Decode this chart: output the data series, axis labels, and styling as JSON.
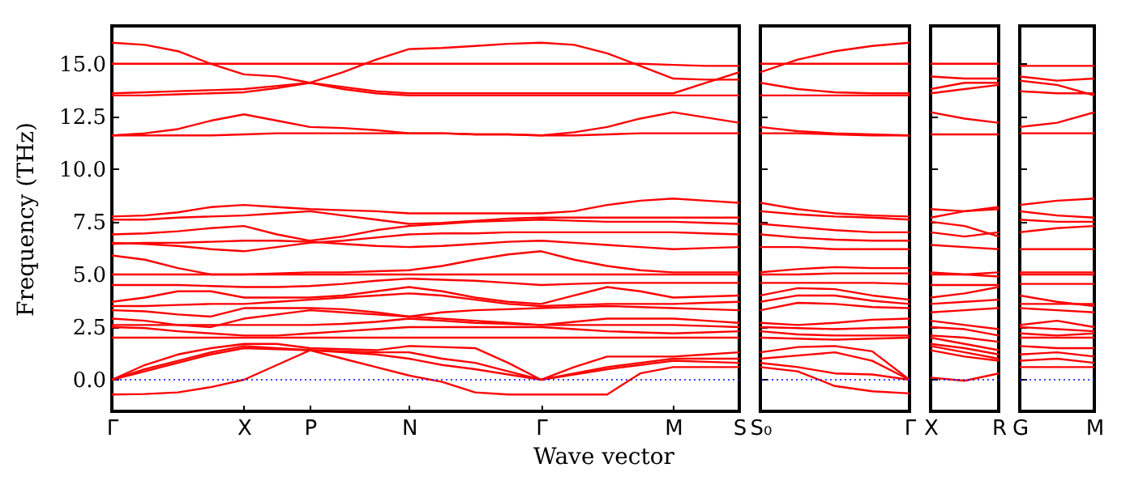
{
  "chart_data": [
    {
      "type": "line",
      "xlabel": "Wave vector",
      "ylabel": "Frequency (THz)",
      "categories": [
        "Γ",
        null,
        null,
        null,
        "X",
        null,
        "P",
        null,
        null,
        "N",
        null,
        null,
        null,
        "Γ",
        null,
        null,
        null,
        "M",
        null,
        "S"
      ],
      "ylim": [
        -1.5,
        16.8
      ],
      "yticks": [
        {
          "value": 0,
          "label": "0.0"
        },
        {
          "value": 2.5,
          "label": "2.5"
        },
        {
          "value": 5,
          "label": "5.0"
        },
        {
          "value": 7.5,
          "label": "7.5"
        },
        {
          "value": 10,
          "label": "10.0"
        },
        {
          "value": 12.5,
          "label": "12.5"
        },
        {
          "value": 15,
          "label": "15.0"
        }
      ],
      "ref_lines": [
        {
          "axis": "y",
          "value": 0,
          "color": "#0000ff",
          "line_style": "dotted"
        }
      ],
      "series": [
        {
          "color": "#ff0000",
          "values": [
            16.0,
            15.9,
            15.6,
            15.0,
            14.5,
            14.4,
            14.1,
            14.6,
            15.2,
            15.7,
            15.75,
            15.85,
            15.95,
            16.0,
            15.9,
            15.5,
            14.9,
            14.3,
            14.25,
            14.25
          ]
        },
        {
          "color": "#ff0000",
          "values": [
            15,
            15,
            15,
            15,
            15,
            15,
            15,
            15,
            15,
            15,
            15,
            15,
            15,
            15,
            15,
            15,
            15,
            14.95,
            14.9,
            14.9
          ]
        },
        {
          "color": "#ff0000",
          "values": [
            13.6,
            13.65,
            13.7,
            13.75,
            13.8,
            13.95,
            14.1,
            13.9,
            13.7,
            13.6,
            13.6,
            13.6,
            13.6,
            13.6,
            13.6,
            13.6,
            13.6,
            13.6,
            14.1,
            14.6
          ]
        },
        {
          "color": "#ff0000",
          "values": [
            13.5,
            13.5,
            13.55,
            13.6,
            13.65,
            13.85,
            14.1,
            13.8,
            13.6,
            13.5,
            13.5,
            13.5,
            13.5,
            13.5,
            13.5,
            13.5,
            13.5,
            13.5,
            13.5,
            13.5
          ]
        },
        {
          "color": "#ff0000",
          "values": [
            11.6,
            11.7,
            11.9,
            12.3,
            12.6,
            12.3,
            12.0,
            11.95,
            11.85,
            11.7,
            11.7,
            11.65,
            11.65,
            11.6,
            11.75,
            12.0,
            12.4,
            12.7,
            12.45,
            12.2
          ]
        },
        {
          "color": "#ff0000",
          "values": [
            11.6,
            11.6,
            11.6,
            11.6,
            11.65,
            11.7,
            11.7,
            11.7,
            11.7,
            11.7,
            11.7,
            11.65,
            11.65,
            11.6,
            11.6,
            11.65,
            11.7,
            11.7,
            11.7,
            11.7
          ]
        },
        {
          "color": "#ff0000",
          "values": [
            7.75,
            7.8,
            7.95,
            8.2,
            8.3,
            8.2,
            8.1,
            8.05,
            8.0,
            7.9,
            7.9,
            7.9,
            7.9,
            7.9,
            8.0,
            8.3,
            8.5,
            8.6,
            8.5,
            8.4
          ]
        },
        {
          "color": "#ff0000",
          "values": [
            7.6,
            7.6,
            7.7,
            7.75,
            7.8,
            7.9,
            8.0,
            7.8,
            7.6,
            7.4,
            7.45,
            7.55,
            7.65,
            7.7,
            7.7,
            7.7,
            7.7,
            7.7,
            7.7,
            7.7
          ]
        },
        {
          "color": "#ff0000",
          "values": [
            6.9,
            6.95,
            7.05,
            7.2,
            7.3,
            6.9,
            6.6,
            6.8,
            7.1,
            7.3,
            7.4,
            7.5,
            7.55,
            7.6,
            7.55,
            7.5,
            7.5,
            7.5,
            7.45,
            7.4
          ]
        },
        {
          "color": "#ff0000",
          "values": [
            6.5,
            6.45,
            6.35,
            6.2,
            6.1,
            6.3,
            6.5,
            6.6,
            6.75,
            6.9,
            6.95,
            6.95,
            7.0,
            7.0,
            7.0,
            7.0,
            7.0,
            7.0,
            6.95,
            6.9
          ]
        },
        {
          "color": "#ff0000",
          "values": [
            6.45,
            6.5,
            6.5,
            6.55,
            6.6,
            6.6,
            6.55,
            6.45,
            6.35,
            6.3,
            6.35,
            6.45,
            6.55,
            6.6,
            6.5,
            6.4,
            6.3,
            6.2,
            6.25,
            6.3
          ]
        },
        {
          "color": "#ff0000",
          "values": [
            5.9,
            5.7,
            5.3,
            5.0,
            5.0,
            5.05,
            5.1,
            5.1,
            5.15,
            5.2,
            5.4,
            5.7,
            5.95,
            6.1,
            5.7,
            5.4,
            5.2,
            5.1,
            5.1,
            5.1
          ]
        },
        {
          "color": "#ff0000",
          "values": [
            5.0,
            5.0,
            5.0,
            5.0,
            5.0,
            5.0,
            5.0,
            5.0,
            5.0,
            5.0,
            5.0,
            5.0,
            5.0,
            5.0,
            5.0,
            5.0,
            5.0,
            5.0,
            5.0,
            5.0
          ]
        },
        {
          "color": "#ff0000",
          "values": [
            4.5,
            4.5,
            4.5,
            4.45,
            4.4,
            4.4,
            4.45,
            4.55,
            4.7,
            4.8,
            4.75,
            4.7,
            4.6,
            4.5,
            4.55,
            4.6,
            4.6,
            4.6,
            4.6,
            4.6
          ]
        },
        {
          "color": "#ff0000",
          "values": [
            3.7,
            3.9,
            4.2,
            4.2,
            3.9,
            3.9,
            3.9,
            4.0,
            4.2,
            4.4,
            4.2,
            3.9,
            3.7,
            3.6,
            4.0,
            4.4,
            4.2,
            3.9,
            3.95,
            4.0
          ]
        },
        {
          "color": "#ff0000",
          "values": [
            3.5,
            3.5,
            3.55,
            3.6,
            3.6,
            3.7,
            3.8,
            3.9,
            4.0,
            4.1,
            4.0,
            3.8,
            3.6,
            3.5,
            3.55,
            3.6,
            3.6,
            3.6,
            3.65,
            3.7
          ]
        },
        {
          "color": "#ff0000",
          "values": [
            3.3,
            3.25,
            3.1,
            3.0,
            3.4,
            3.4,
            3.4,
            3.35,
            3.2,
            3.0,
            3.2,
            3.3,
            3.35,
            3.4,
            3.45,
            3.5,
            3.45,
            3.4,
            3.35,
            3.3
          ]
        },
        {
          "color": "#ff0000",
          "values": [
            2.9,
            2.8,
            2.6,
            2.5,
            2.9,
            3.1,
            3.3,
            3.2,
            3.1,
            3.0,
            2.9,
            2.8,
            2.7,
            2.6,
            2.75,
            2.9,
            2.9,
            2.9,
            2.8,
            2.7
          ]
        },
        {
          "color": "#ff0000",
          "values": [
            2.6,
            2.6,
            2.6,
            2.6,
            2.6,
            2.6,
            2.6,
            2.65,
            2.75,
            2.9,
            2.8,
            2.7,
            2.65,
            2.6,
            2.6,
            2.6,
            2.6,
            2.6,
            2.55,
            2.5
          ]
        },
        {
          "color": "#ff0000",
          "values": [
            2.5,
            2.45,
            2.3,
            2.2,
            2.1,
            2.1,
            2.2,
            2.3,
            2.4,
            2.5,
            2.5,
            2.5,
            2.5,
            2.5,
            2.4,
            2.3,
            2.25,
            2.2,
            2.25,
            2.3
          ]
        },
        {
          "color": "#ff0000",
          "values": [
            2.0,
            2.0,
            2.0,
            2.0,
            2.0,
            2.0,
            2.0,
            2.0,
            2.0,
            2.0,
            2.0,
            2.0,
            2.0,
            2.0,
            2.0,
            2.0,
            2.0,
            2.0,
            2.0,
            2.0
          ]
        },
        {
          "color": "#ff0000",
          "values": [
            0,
            0.7,
            1.2,
            1.5,
            1.7,
            1.7,
            1.5,
            1.45,
            1.4,
            1.6,
            1.55,
            1.5,
            0.8,
            0,
            0.6,
            1.1,
            1.1,
            1.1,
            1.2,
            1.3
          ]
        },
        {
          "color": "#ff0000",
          "values": [
            0,
            0.5,
            0.9,
            1.3,
            1.6,
            1.5,
            1.4,
            1.35,
            1.3,
            1.3,
            1.0,
            0.8,
            0.4,
            0,
            0.3,
            0.6,
            0.8,
            1.0,
            1.0,
            1.0
          ]
        },
        {
          "color": "#ff0000",
          "values": [
            0,
            0.4,
            0.8,
            1.2,
            1.5,
            1.45,
            1.4,
            1.3,
            1.2,
            1.0,
            0.7,
            0.5,
            0.25,
            0,
            0.25,
            0.5,
            0.7,
            0.9,
            0.85,
            0.8
          ]
        },
        {
          "color": "#ff0000",
          "values": [
            -0.7,
            -0.68,
            -0.6,
            -0.35,
            0,
            0.7,
            1.4,
            1.0,
            0.6,
            0.2,
            -0.1,
            -0.6,
            -0.7,
            -0.7,
            -0.7,
            -0.7,
            0.3,
            0.6,
            0.6,
            0.6
          ]
        }
      ]
    },
    {
      "type": "line",
      "categories": [
        "S₀",
        null,
        null,
        null,
        "Γ"
      ],
      "ylim": [
        -1.5,
        16.8
      ],
      "yticks": [
        {
          "value": 0,
          "label": null
        },
        {
          "value": 2.5,
          "label": null
        },
        {
          "value": 5,
          "label": null
        },
        {
          "value": 7.5,
          "label": null
        },
        {
          "value": 10,
          "label": null
        },
        {
          "value": 12.5,
          "label": null
        },
        {
          "value": 15,
          "label": null
        }
      ],
      "tick_labels": "x",
      "ref_lines": [
        {
          "axis": "y",
          "value": 0,
          "color": "#0000ff",
          "line_style": "dotted"
        }
      ],
      "series": [
        {
          "color": "#ff0000",
          "values": [
            14.6,
            15.2,
            15.6,
            15.85,
            16.0
          ]
        },
        {
          "color": "#ff0000",
          "values": [
            15,
            15,
            15,
            15,
            15
          ]
        },
        {
          "color": "#ff0000",
          "values": [
            14.1,
            13.8,
            13.65,
            13.6,
            13.6
          ]
        },
        {
          "color": "#ff0000",
          "values": [
            13.5,
            13.5,
            13.5,
            13.5,
            13.5
          ]
        },
        {
          "color": "#ff0000",
          "values": [
            12.0,
            11.8,
            11.7,
            11.65,
            11.6
          ]
        },
        {
          "color": "#ff0000",
          "values": [
            11.7,
            11.7,
            11.65,
            11.6,
            11.6
          ]
        },
        {
          "color": "#ff0000",
          "values": [
            8.4,
            8.1,
            7.9,
            7.8,
            7.75
          ]
        },
        {
          "color": "#ff0000",
          "values": [
            8.0,
            7.85,
            7.75,
            7.7,
            7.6
          ]
        },
        {
          "color": "#ff0000",
          "values": [
            7.4,
            7.25,
            7.1,
            7.0,
            7.0
          ]
        },
        {
          "color": "#ff0000",
          "values": [
            6.9,
            6.75,
            6.65,
            6.6,
            6.6
          ]
        },
        {
          "color": "#ff0000",
          "values": [
            6.3,
            6.3,
            6.2,
            6.2,
            6.2
          ]
        },
        {
          "color": "#ff0000",
          "values": [
            5.1,
            5.25,
            5.35,
            5.3,
            5.3
          ]
        },
        {
          "color": "#ff0000",
          "values": [
            5.0,
            5.0,
            5.05,
            5.05,
            5.05
          ]
        },
        {
          "color": "#ff0000",
          "values": [
            4.6,
            4.6,
            4.6,
            4.6,
            4.55
          ]
        },
        {
          "color": "#ff0000",
          "values": [
            4.0,
            4.35,
            4.3,
            4.0,
            3.8
          ]
        },
        {
          "color": "#ff0000",
          "values": [
            3.7,
            4.0,
            4.0,
            3.75,
            3.6
          ]
        },
        {
          "color": "#ff0000",
          "values": [
            3.3,
            3.65,
            3.6,
            3.45,
            3.4
          ]
        },
        {
          "color": "#ff0000",
          "values": [
            2.7,
            2.6,
            2.7,
            2.85,
            2.9
          ]
        },
        {
          "color": "#ff0000",
          "values": [
            2.5,
            2.45,
            2.4,
            2.45,
            2.5
          ]
        },
        {
          "color": "#ff0000",
          "values": [
            2.3,
            2.15,
            2.1,
            2.1,
            2.1
          ]
        },
        {
          "color": "#ff0000",
          "values": [
            2.0,
            1.95,
            1.9,
            1.95,
            2.0
          ]
        },
        {
          "color": "#ff0000",
          "values": [
            1.3,
            1.55,
            1.6,
            1.35,
            0
          ]
        },
        {
          "color": "#ff0000",
          "values": [
            1.0,
            1.15,
            1.3,
            0.9,
            0
          ]
        },
        {
          "color": "#ff0000",
          "values": [
            0.8,
            0.6,
            0.3,
            0.25,
            0
          ]
        },
        {
          "color": "#ff0000",
          "values": [
            0.6,
            0.4,
            -0.3,
            -0.55,
            -0.65
          ]
        }
      ]
    },
    {
      "type": "line",
      "categories": [
        "X",
        null,
        "R"
      ],
      "ylim": [
        -1.5,
        16.8
      ],
      "yticks": [
        {
          "value": 0,
          "label": null
        },
        {
          "value": 2.5,
          "label": null
        },
        {
          "value": 5,
          "label": null
        },
        {
          "value": 7.5,
          "label": null
        },
        {
          "value": 10,
          "label": null
        },
        {
          "value": 12.5,
          "label": null
        },
        {
          "value": 15,
          "label": null
        }
      ],
      "tick_labels": "x",
      "ref_lines": [
        {
          "axis": "y",
          "value": 0,
          "color": "#0000ff",
          "line_style": "dotted"
        }
      ],
      "series": [
        {
          "color": "#ff0000",
          "values": [
            14.4,
            14.3,
            14.3
          ]
        },
        {
          "color": "#ff0000",
          "values": [
            15,
            15,
            15
          ]
        },
        {
          "color": "#ff0000",
          "values": [
            13.8,
            14.1,
            14.1
          ]
        },
        {
          "color": "#ff0000",
          "values": [
            13.6,
            13.8,
            14.0
          ]
        },
        {
          "color": "#ff0000",
          "values": [
            12.7,
            12.4,
            12.2
          ]
        },
        {
          "color": "#ff0000",
          "values": [
            11.65,
            11.65,
            11.65
          ]
        },
        {
          "color": "#ff0000",
          "values": [
            8.1,
            8.0,
            8.2
          ]
        },
        {
          "color": "#ff0000",
          "values": [
            7.7,
            8.0,
            8.1
          ]
        },
        {
          "color": "#ff0000",
          "values": [
            7.5,
            7.3,
            6.8
          ]
        },
        {
          "color": "#ff0000",
          "values": [
            7.0,
            6.8,
            7.0
          ]
        },
        {
          "color": "#ff0000",
          "values": [
            6.4,
            6.3,
            6.2
          ]
        },
        {
          "color": "#ff0000",
          "values": [
            5.0,
            5.0,
            5.1
          ]
        },
        {
          "color": "#ff0000",
          "values": [
            5.1,
            5.0,
            4.9
          ]
        },
        {
          "color": "#ff0000",
          "values": [
            4.5,
            4.5,
            4.5
          ]
        },
        {
          "color": "#ff0000",
          "values": [
            3.9,
            4.1,
            4.4
          ]
        },
        {
          "color": "#ff0000",
          "values": [
            3.6,
            3.7,
            3.8
          ]
        },
        {
          "color": "#ff0000",
          "values": [
            3.2,
            3.3,
            3.4
          ]
        },
        {
          "color": "#ff0000",
          "values": [
            2.8,
            2.6,
            2.4
          ]
        },
        {
          "color": "#ff0000",
          "values": [
            2.5,
            2.4,
            2.1
          ]
        },
        {
          "color": "#ff0000",
          "values": [
            2.1,
            2.0,
            1.8
          ]
        },
        {
          "color": "#ff0000",
          "values": [
            2.0,
            1.7,
            1.4
          ]
        },
        {
          "color": "#ff0000",
          "values": [
            1.7,
            1.5,
            1.2
          ]
        },
        {
          "color": "#ff0000",
          "values": [
            1.6,
            1.3,
            1.0
          ]
        },
        {
          "color": "#ff0000",
          "values": [
            1.4,
            1.1,
            0.9
          ]
        },
        {
          "color": "#ff0000",
          "values": [
            0.1,
            -0.05,
            0.3
          ]
        }
      ]
    },
    {
      "type": "line",
      "categories": [
        "G",
        null,
        "M"
      ],
      "ylim": [
        -1.5,
        16.8
      ],
      "yticks": [
        {
          "value": 0,
          "label": null
        },
        {
          "value": 2.5,
          "label": null
        },
        {
          "value": 5,
          "label": null
        },
        {
          "value": 7.5,
          "label": null
        },
        {
          "value": 10,
          "label": null
        },
        {
          "value": 12.5,
          "label": null
        },
        {
          "value": 15,
          "label": null
        }
      ],
      "tick_labels": "x",
      "ref_lines": [
        {
          "axis": "y",
          "value": 0,
          "color": "#0000ff",
          "line_style": "dotted"
        }
      ],
      "series": [
        {
          "color": "#ff0000",
          "values": [
            14.9,
            14.9,
            14.9
          ]
        },
        {
          "color": "#ff0000",
          "values": [
            14.4,
            14.2,
            14.3
          ]
        },
        {
          "color": "#ff0000",
          "values": [
            14.2,
            14.0,
            13.5
          ]
        },
        {
          "color": "#ff0000",
          "values": [
            13.7,
            13.6,
            13.6
          ]
        },
        {
          "color": "#ff0000",
          "values": [
            12.0,
            12.2,
            12.7
          ]
        },
        {
          "color": "#ff0000",
          "values": [
            11.7,
            11.7,
            11.7
          ]
        },
        {
          "color": "#ff0000",
          "values": [
            8.3,
            8.5,
            8.6
          ]
        },
        {
          "color": "#ff0000",
          "values": [
            8.0,
            7.8,
            7.7
          ]
        },
        {
          "color": "#ff0000",
          "values": [
            7.6,
            7.5,
            7.5
          ]
        },
        {
          "color": "#ff0000",
          "values": [
            7.0,
            7.2,
            7.3
          ]
        },
        {
          "color": "#ff0000",
          "values": [
            6.2,
            6.2,
            6.2
          ]
        },
        {
          "color": "#ff0000",
          "values": [
            5.1,
            5.1,
            5.1
          ]
        },
        {
          "color": "#ff0000",
          "values": [
            5.0,
            5.0,
            5.0
          ]
        },
        {
          "color": "#ff0000",
          "values": [
            4.55,
            4.55,
            4.55
          ]
        },
        {
          "color": "#ff0000",
          "values": [
            4.0,
            3.7,
            3.5
          ]
        },
        {
          "color": "#ff0000",
          "values": [
            3.6,
            3.6,
            3.6
          ]
        },
        {
          "color": "#ff0000",
          "values": [
            3.4,
            3.3,
            3.2
          ]
        },
        {
          "color": "#ff0000",
          "values": [
            2.6,
            2.8,
            2.5
          ]
        },
        {
          "color": "#ff0000",
          "values": [
            2.5,
            2.4,
            2.3
          ]
        },
        {
          "color": "#ff0000",
          "values": [
            2.2,
            2.1,
            2.2
          ]
        },
        {
          "color": "#ff0000",
          "values": [
            2.0,
            2.0,
            2.0
          ]
        },
        {
          "color": "#ff0000",
          "values": [
            1.6,
            1.5,
            1.5
          ]
        },
        {
          "color": "#ff0000",
          "values": [
            1.2,
            1.3,
            1.1
          ]
        },
        {
          "color": "#ff0000",
          "values": [
            0.9,
            1.0,
            0.8
          ]
        },
        {
          "color": "#ff0000",
          "values": [
            0.6,
            0.6,
            0.6
          ]
        }
      ]
    }
  ]
}
